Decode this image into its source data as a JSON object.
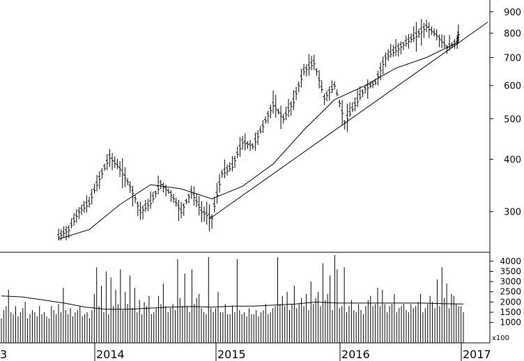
{
  "chart_data": {
    "type": "line",
    "price_panel": {
      "scale": "log",
      "ylim": [
        240,
        960
      ],
      "y_ticks": [
        300,
        400,
        500,
        600,
        700,
        800,
        900
      ],
      "y_tick_labels": [
        "300",
        "400",
        "500",
        "600",
        "700",
        "800",
        "900"
      ],
      "grid": false,
      "series": [
        {
          "kind": "weekly-bars",
          "x": [
            "2013-09",
            "2013-10",
            "2013-11",
            "2013-12",
            "2014-01",
            "2014-02",
            "2014-03",
            "2014-04",
            "2014-05",
            "2014-06",
            "2014-07",
            "2014-08",
            "2014-09",
            "2014-10",
            "2014-11",
            "2014-12",
            "2015-01",
            "2015-02",
            "2015-03",
            "2015-04",
            "2015-05",
            "2015-06",
            "2015-07",
            "2015-08",
            "2015-09",
            "2015-10",
            "2015-11",
            "2015-12",
            "2016-01",
            "2016-02",
            "2016-03",
            "2016-04",
            "2016-05",
            "2016-06",
            "2016-07",
            "2016-08",
            "2016-09",
            "2016-10",
            "2016-11",
            "2016-12",
            "2016-12-20"
          ],
          "y": [
            262,
            272,
            300,
            315,
            360,
            405,
            380,
            345,
            300,
            315,
            350,
            330,
            300,
            335,
            300,
            290,
            370,
            385,
            440,
            430,
            480,
            540,
            500,
            550,
            650,
            680,
            560,
            600,
            490,
            540,
            590,
            610,
            700,
            730,
            760,
            790,
            830,
            790,
            740,
            760,
            810
          ]
        },
        {
          "kind": "moving-average",
          "x": [
            "2013-09",
            "2013-12",
            "2014-03",
            "2014-06",
            "2014-09",
            "2014-12",
            "2015-03",
            "2015-06",
            "2015-09",
            "2015-12",
            "2016-03",
            "2016-06",
            "2016-09",
            "2016-12"
          ],
          "y": [
            258,
            272,
            312,
            348,
            340,
            322,
            345,
            390,
            470,
            555,
            600,
            660,
            700,
            760
          ]
        },
        {
          "kind": "trendline",
          "x": [
            "2014-12",
            "2017-01"
          ],
          "y": [
            288,
            850
          ]
        }
      ]
    },
    "volume_panel": {
      "ylim": [
        0,
        4300
      ],
      "y_ticks": [
        1000,
        1500,
        2000,
        2500,
        3000,
        3500,
        4000
      ],
      "y_tick_labels": [
        "1000",
        "1500",
        "2000",
        "2500",
        "3000",
        "3500",
        "4000"
      ],
      "multiplier_label": "x100",
      "series": [
        {
          "kind": "volume-bars",
          "values": [
            1200,
            1600,
            1800,
            2600,
            1500,
            1400,
            1800,
            1300,
            1500,
            1700,
            2000,
            1200,
            1400,
            1600,
            1500,
            1300,
            1800,
            1400,
            1500,
            1300,
            1200,
            1800,
            1600,
            1400,
            1900,
            1500,
            2700,
            1600,
            1400,
            1700,
            1300,
            1500,
            1600,
            1800,
            1300,
            1400,
            1500,
            1200,
            1600,
            2400,
            3700,
            1800,
            2800,
            1500,
            3500,
            1400,
            3200,
            1800,
            2600,
            1900,
            3600,
            1600,
            2500,
            1900,
            3300,
            1700,
            2700,
            1500,
            2100,
            1400,
            2000,
            1800,
            2300,
            1400,
            1500,
            1700,
            2300,
            1900,
            2900,
            1800,
            1500,
            1700,
            1900,
            1600,
            4100,
            2200,
            1800,
            3400,
            1800,
            1500,
            3600,
            1900,
            2200,
            2400,
            1700,
            1500,
            1400,
            4200,
            1700,
            1500,
            1700,
            2500,
            1500,
            1500,
            1900,
            1400,
            1400,
            1800,
            1500,
            4100,
            1600,
            1400,
            1500,
            1300,
            1700,
            1400,
            1400,
            1600,
            1300,
            1500,
            1600,
            1900,
            1400,
            1500,
            1700,
            1800,
            4200,
            1900,
            2300,
            1800,
            2500,
            1600,
            1900,
            2800,
            1700,
            1900,
            2200,
            1800,
            2400,
            1600,
            3000,
            1900,
            2200,
            2500,
            1800,
            3900,
            2100,
            2400,
            3300,
            1600,
            4300,
            3600,
            1700,
            1800,
            3700,
            1500,
            1800,
            2100,
            1600,
            1500,
            1900,
            1600,
            1400,
            1800,
            2100,
            2300,
            1800,
            1900,
            2700,
            1800,
            2600,
            1900,
            1500,
            1800,
            1900,
            2400,
            1500,
            1700,
            1800,
            1900,
            1600,
            1500,
            1900,
            1700,
            1800,
            2000,
            2400,
            1500,
            1700,
            1900,
            2300,
            2000,
            1700,
            3100,
            1800,
            3700,
            2200,
            2900,
            1700,
            2400,
            2300,
            1900,
            1800,
            1800,
            1500
          ]
        },
        {
          "kind": "moving-average",
          "values": [
            2300,
            2250,
            2100,
            1950,
            1750,
            1650,
            1650,
            1700,
            1750,
            1780,
            1750,
            1800,
            1800,
            1850,
            1900,
            2000,
            1950,
            1950,
            1950,
            1950,
            1950,
            1920,
            1900
          ]
        }
      ]
    },
    "x_axis": {
      "tick_labels": [
        "3",
        "2014",
        "2015",
        "2016",
        "2017"
      ]
    }
  }
}
